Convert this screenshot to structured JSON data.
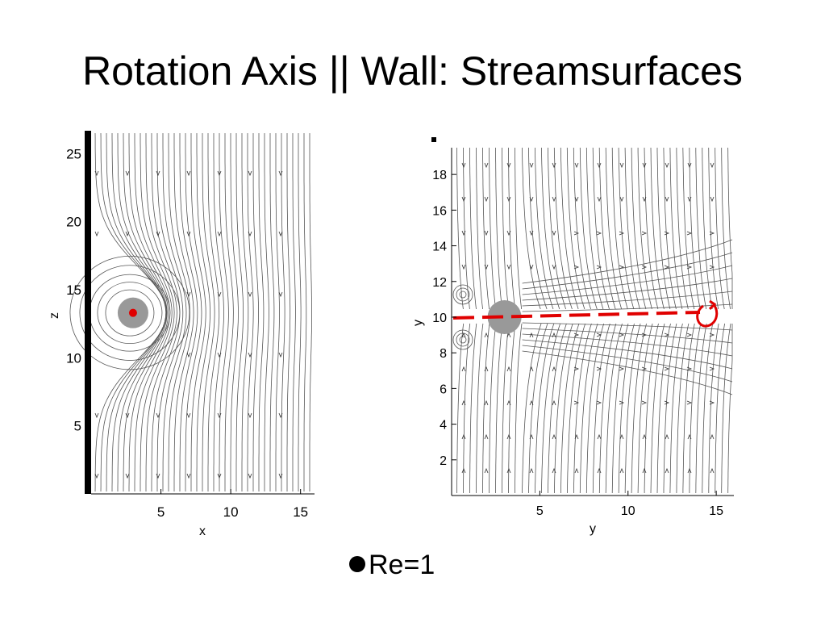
{
  "slide": {
    "title": "Rotation Axis || Wall: Streamsurfaces",
    "bullet": "Re=1"
  },
  "left_panel": {
    "x_label": "x",
    "y_label": "z",
    "x_ticks": [
      "5",
      "10",
      "15"
    ],
    "y_ticks": [
      "5",
      "10",
      "15",
      "20",
      "25"
    ],
    "x_tick_values": [
      5,
      10,
      15
    ],
    "y_tick_values": [
      5,
      10,
      15,
      20,
      25
    ],
    "x_range": [
      0,
      16
    ],
    "y_range": [
      0,
      26.5
    ],
    "cylinder_center": [
      3,
      13.3
    ],
    "marker_color": "#e00000",
    "wall": "left"
  },
  "right_panel": {
    "x_label": "y",
    "y_label": "y",
    "x_ticks": [
      "5",
      "10",
      "15"
    ],
    "y_ticks": [
      "2",
      "4",
      "6",
      "8",
      "10",
      "12",
      "14",
      "16",
      "18"
    ],
    "x_tick_values": [
      5,
      10,
      15
    ],
    "y_tick_values": [
      2,
      4,
      6,
      8,
      10,
      12,
      14,
      16,
      18
    ],
    "x_range": [
      0,
      16
    ],
    "y_range": [
      0,
      19.5
    ],
    "cylinder_center": [
      3,
      10
    ],
    "annotation_color": "#e00000"
  },
  "colors": {
    "streamline": "#555555",
    "cylinder": "#999999",
    "wall": "#000000",
    "accent": "#e00000"
  }
}
